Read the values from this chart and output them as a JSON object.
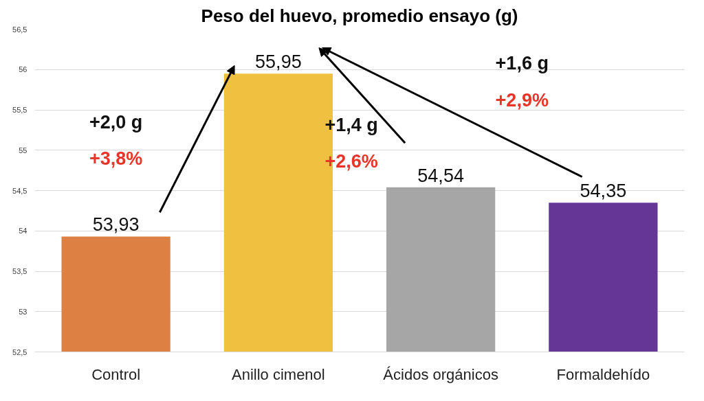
{
  "chart_data": {
    "type": "bar",
    "title": "Peso del huevo, promedio ensayo (g)",
    "categories": [
      "Control",
      "Anillo cimenol",
      "Ácidos orgánicos",
      "Formaldehído"
    ],
    "values": [
      53.93,
      55.95,
      54.54,
      54.35
    ],
    "value_labels": [
      "53,93",
      "55,95",
      "54,54",
      "54,35"
    ],
    "colors": [
      "#dd8044",
      "#f0c040",
      "#a6a6a6",
      "#653695"
    ],
    "ylim": [
      52.5,
      56.5
    ],
    "yticks": [
      {
        "value": 52.5,
        "label": "52,5"
      },
      53,
      {
        "value": 53.5,
        "label": "53,5"
      },
      54,
      {
        "value": 54.5,
        "label": "54,5"
      },
      55,
      {
        "value": 55.5,
        "label": "55,5"
      },
      56,
      {
        "value": 56.5,
        "label": "56,5"
      }
    ],
    "grid": "y",
    "annotations": [
      "+2,0 g",
      "+3,8%",
      "+1,4 g",
      "+2,6%",
      "+1,6 g",
      "+2,9%"
    ]
  }
}
